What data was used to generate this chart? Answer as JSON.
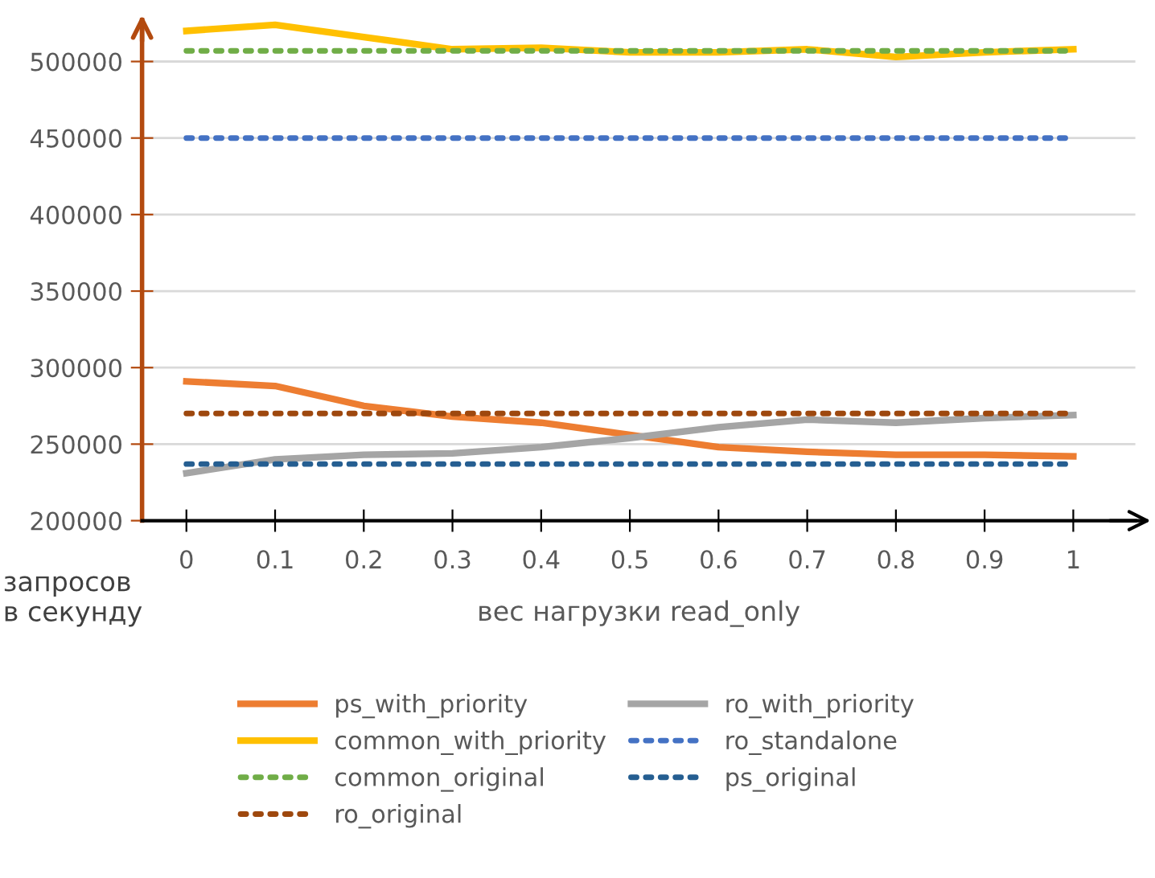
{
  "chart_data": {
    "type": "line",
    "xlabel": "вес нагрузки read_only",
    "ylabel": "запросов\nв секунду",
    "categories": [
      "0",
      "0.1",
      "0.2",
      "0.3",
      "0.4",
      "0.5",
      "0.6",
      "0.7",
      "0.8",
      "0.9",
      "1"
    ],
    "series": [
      {
        "name": "ps_with_priority",
        "color": "#ed7d31",
        "line_style": "solid",
        "values": [
          291000,
          288000,
          275000,
          268000,
          264000,
          256000,
          248000,
          245000,
          243000,
          243000,
          242000
        ]
      },
      {
        "name": "ro_with_priority",
        "color": "#a5a5a5",
        "line_style": "solid",
        "values": [
          231000,
          240000,
          243000,
          244000,
          248000,
          254000,
          261000,
          266000,
          264000,
          267000,
          269000
        ]
      },
      {
        "name": "common_with_priority",
        "color": "#ffc000",
        "line_style": "solid",
        "values": [
          520000,
          524000,
          516000,
          508000,
          509000,
          506000,
          506000,
          508000,
          503000,
          506000,
          508000
        ]
      },
      {
        "name": "ro_standalone",
        "color": "#4472c4",
        "line_style": "dotted",
        "values": [
          450000,
          450000,
          450000,
          450000,
          450000,
          450000,
          450000,
          450000,
          450000,
          450000,
          450000
        ]
      },
      {
        "name": "common_original",
        "color": "#70ad47",
        "line_style": "dotted",
        "values": [
          507000,
          507000,
          507000,
          507000,
          507000,
          507000,
          507000,
          507000,
          507000,
          507000,
          507000
        ]
      },
      {
        "name": "ps_original",
        "color": "#255e91",
        "line_style": "dotted",
        "values": [
          237000,
          237000,
          237000,
          237000,
          237000,
          237000,
          237000,
          237000,
          237000,
          237000,
          237000
        ]
      },
      {
        "name": "ro_original",
        "color": "#9e480e",
        "line_style": "dotted",
        "values": [
          270000,
          270000,
          270000,
          270000,
          270000,
          270000,
          270000,
          270000,
          270000,
          270000,
          270000
        ]
      }
    ],
    "ylim": [
      200000,
      527000
    ],
    "yticks": [
      200000,
      250000,
      300000,
      350000,
      400000,
      450000,
      500000
    ],
    "grid": "y",
    "legend": "bottom",
    "marker": "none"
  }
}
